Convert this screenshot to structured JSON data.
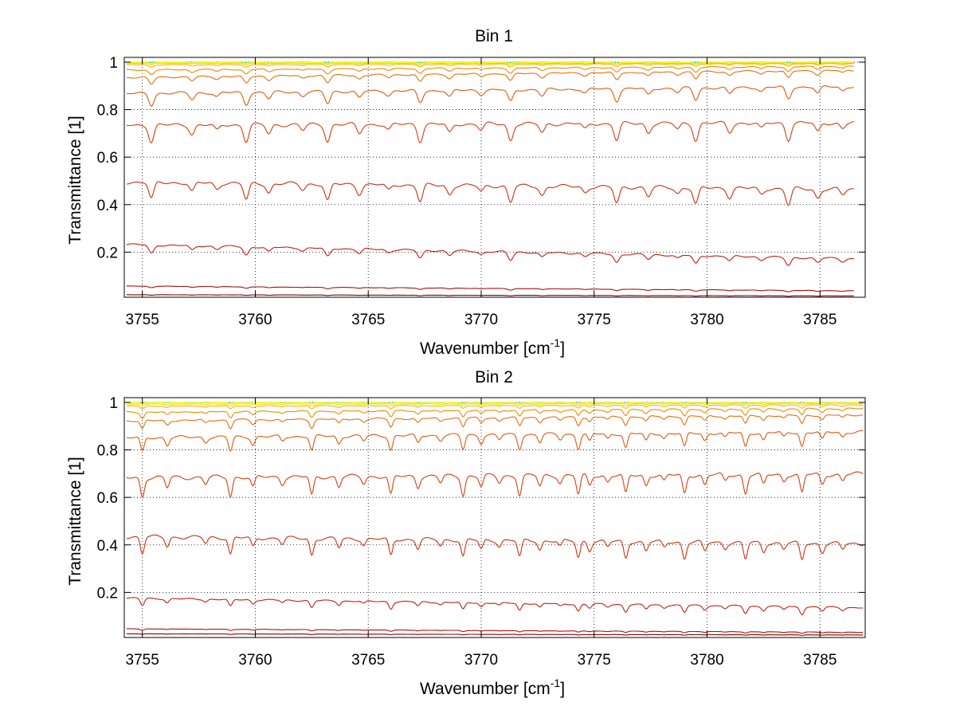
{
  "chart_data": [
    {
      "type": "line",
      "title": "Bin 1",
      "xlabel": "Wavenumber [cm",
      "xlabel_sup": "-1",
      "xlabel_end": "]",
      "ylabel": "Transmittance [1]",
      "xlim": [
        3754.2,
        3787.0
      ],
      "ylim": [
        0.01,
        1.02
      ],
      "grid": true,
      "xticks": [
        3755,
        3760,
        3765,
        3770,
        3775,
        3780,
        3785
      ],
      "yticks": [
        0.2,
        0.4,
        0.6,
        0.8,
        1
      ],
      "x_start": 3754.3,
      "x_end": 3786.5,
      "series": [
        {
          "base": [
            0.999,
            0.999
          ],
          "amp": 0.002,
          "color": "#2fd0c8"
        },
        {
          "base": [
            0.998,
            0.998
          ],
          "amp": 0.003,
          "color": "#d8f03a"
        },
        {
          "base": [
            0.996,
            0.997
          ],
          "amp": 0.004,
          "color": "#ffff00"
        },
        {
          "base": [
            0.993,
            0.994
          ],
          "amp": 0.006,
          "color": "#ffd000"
        },
        {
          "base": [
            0.985,
            0.99
          ],
          "amp": 0.01,
          "color": "#ffb000"
        },
        {
          "base": [
            0.96,
            0.975
          ],
          "amp": 0.02,
          "color": "#ee8a00"
        },
        {
          "base": [
            0.925,
            0.955
          ],
          "amp": 0.03,
          "color": "#e57010"
        },
        {
          "base": [
            0.85,
            0.88
          ],
          "amp": 0.05,
          "color": "#dc5a10"
        },
        {
          "base": [
            0.71,
            0.72
          ],
          "amp": 0.07,
          "color": "#d54010"
        },
        {
          "base": [
            0.47,
            0.44
          ],
          "amp": 0.07,
          "color": "#cc3010"
        },
        {
          "base": [
            0.22,
            0.16
          ],
          "amp": 0.035,
          "color": "#c02010"
        },
        {
          "base": [
            0.055,
            0.035
          ],
          "amp": 0.006,
          "color": "#a81010"
        },
        {
          "base": [
            0.02,
            0.015
          ],
          "amp": 0.002,
          "color": "#800000"
        }
      ]
    },
    {
      "type": "line",
      "title": "Bin 2",
      "xlabel": "Wavenumber [cm",
      "xlabel_sup": "-1",
      "xlabel_end": "]",
      "ylabel": "Transmittance [1]",
      "xlim": [
        3754.2,
        3787.0
      ],
      "ylim": [
        0.01,
        1.02
      ],
      "grid": true,
      "xticks": [
        3755,
        3760,
        3765,
        3770,
        3775,
        3780,
        3785
      ],
      "yticks": [
        0.2,
        0.4,
        0.6,
        0.8,
        1
      ],
      "x_start": 3754.3,
      "x_end": 3786.9,
      "series": [
        {
          "base": [
            0.999,
            0.999
          ],
          "amp": 0.002,
          "color": "#2fd0c8"
        },
        {
          "base": [
            0.998,
            0.998
          ],
          "amp": 0.003,
          "color": "#d8f03a"
        },
        {
          "base": [
            0.996,
            0.997
          ],
          "amp": 0.005,
          "color": "#ffff00"
        },
        {
          "base": [
            0.99,
            0.993
          ],
          "amp": 0.008,
          "color": "#ffd000"
        },
        {
          "base": [
            0.98,
            0.985
          ],
          "amp": 0.012,
          "color": "#ffb000"
        },
        {
          "base": [
            0.95,
            0.965
          ],
          "amp": 0.025,
          "color": "#ee8a00"
        },
        {
          "base": [
            0.91,
            0.935
          ],
          "amp": 0.035,
          "color": "#e57010"
        },
        {
          "base": [
            0.83,
            0.855
          ],
          "amp": 0.06,
          "color": "#dc5a10"
        },
        {
          "base": [
            0.655,
            0.67
          ],
          "amp": 0.08,
          "color": "#d54010"
        },
        {
          "base": [
            0.41,
            0.38
          ],
          "amp": 0.07,
          "color": "#cc3010"
        },
        {
          "base": [
            0.165,
            0.125
          ],
          "amp": 0.03,
          "color": "#c02010"
        },
        {
          "base": [
            0.045,
            0.03
          ],
          "amp": 0.005,
          "color": "#a81010"
        },
        {
          "base": [
            0.025,
            0.02
          ],
          "amp": 0.002,
          "color": "#800000"
        }
      ]
    }
  ]
}
